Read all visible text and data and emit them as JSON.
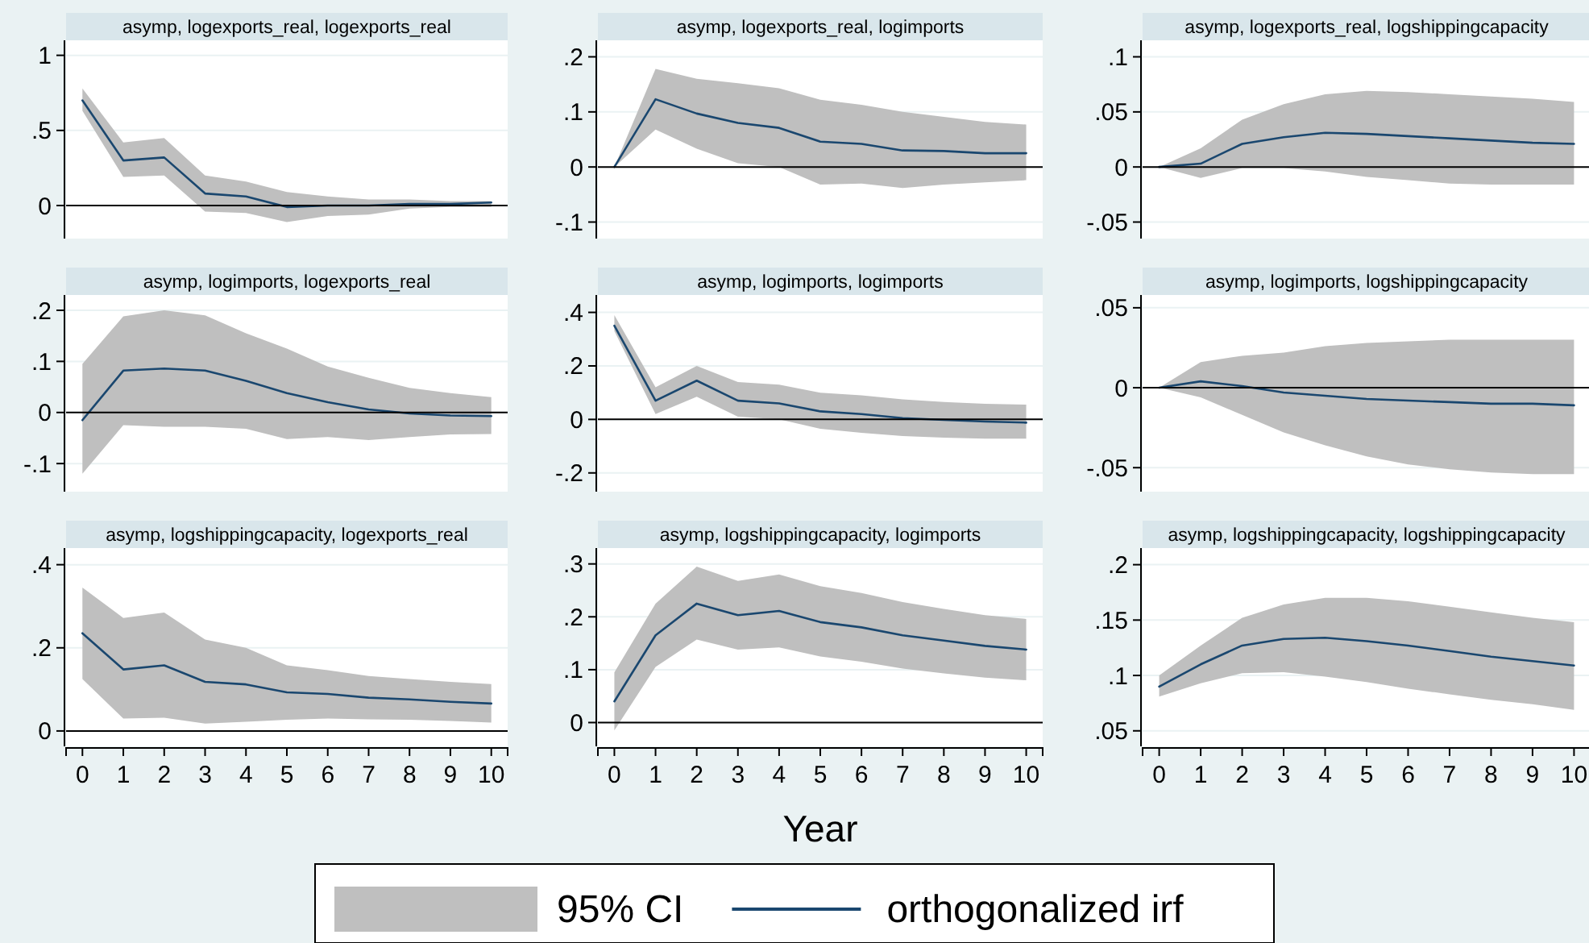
{
  "chart_data": [
    {
      "type": "line",
      "title": "asymp, logexports_real, logexports_real",
      "x": [
        0,
        1,
        2,
        3,
        4,
        5,
        6,
        7,
        8,
        9,
        10
      ],
      "xlim": [
        -0.4,
        10.4
      ],
      "xticks": [
        0,
        1,
        2,
        3,
        4,
        5,
        6,
        7,
        8,
        9,
        10
      ],
      "ylim": [
        -0.22,
        1.1
      ],
      "yticks": [
        {
          "value": 0,
          "label": "0"
        },
        {
          "value": 0.5,
          "label": ".5"
        },
        1
      ],
      "grid": "y",
      "tick_labels": "y",
      "ref_lines": [
        {
          "axis": "y",
          "value": 0
        }
      ],
      "series": [
        {
          "color": "#1a476f",
          "values": [
            0.7,
            0.3,
            0.32,
            0.08,
            0.06,
            -0.01,
            0,
            0,
            0.01,
            0.01,
            0.02
          ],
          "lower": [
            0.63,
            0.19,
            0.2,
            -0.04,
            -0.05,
            -0.11,
            -0.07,
            -0.06,
            -0.02,
            -0.01,
            -0.01
          ],
          "upper": [
            0.78,
            0.42,
            0.45,
            0.2,
            0.16,
            0.09,
            0.06,
            0.04,
            0.04,
            0.03,
            0.03
          ]
        }
      ]
    },
    {
      "type": "line",
      "title": "asymp, logexports_real, logimports",
      "x": [
        0,
        1,
        2,
        3,
        4,
        5,
        6,
        7,
        8,
        9,
        10
      ],
      "xlim": [
        -0.4,
        10.4
      ],
      "xticks": [
        0,
        1,
        2,
        3,
        4,
        5,
        6,
        7,
        8,
        9,
        10
      ],
      "ylim": [
        -0.13,
        0.23
      ],
      "yticks": [
        {
          "value": -0.1,
          "label": "-.1"
        },
        {
          "value": 0,
          "label": "0"
        },
        {
          "value": 0.1,
          "label": ".1"
        },
        {
          "value": 0.2,
          "label": ".2"
        }
      ],
      "grid": "y",
      "tick_labels": "y",
      "ref_lines": [
        {
          "axis": "y",
          "value": 0
        }
      ],
      "series": [
        {
          "color": "#1a476f",
          "values": [
            0,
            0.123,
            0.097,
            0.08,
            0.071,
            0.046,
            0.042,
            0.03,
            0.029,
            0.025,
            0.025
          ],
          "lower": [
            0,
            0.068,
            0.033,
            0.007,
            0,
            -0.032,
            -0.03,
            -0.038,
            -0.032,
            -0.028,
            -0.024
          ],
          "upper": [
            0,
            0.178,
            0.16,
            0.152,
            0.143,
            0.122,
            0.113,
            0.1,
            0.091,
            0.082,
            0.077
          ]
        }
      ]
    },
    {
      "type": "line",
      "title": "asymp, logexports_real, logshippingcapacity",
      "x": [
        0,
        1,
        2,
        3,
        4,
        5,
        6,
        7,
        8,
        9,
        10
      ],
      "xlim": [
        -0.4,
        10.4
      ],
      "xticks": [
        0,
        1,
        2,
        3,
        4,
        5,
        6,
        7,
        8,
        9,
        10
      ],
      "ylim": [
        -0.065,
        0.115
      ],
      "yticks": [
        {
          "value": -0.05,
          "label": "-.05"
        },
        {
          "value": 0,
          "label": "0"
        },
        {
          "value": 0.05,
          "label": ".05"
        },
        {
          "value": 0.1,
          "label": ".1"
        }
      ],
      "grid": "y",
      "tick_labels": "y",
      "ref_lines": [
        {
          "axis": "y",
          "value": 0
        }
      ],
      "series": [
        {
          "color": "#1a476f",
          "values": [
            0,
            0.003,
            0.021,
            0.027,
            0.031,
            0.03,
            0.028,
            0.026,
            0.024,
            0.022,
            0.021
          ],
          "lower": [
            0,
            -0.01,
            -0.001,
            -0.001,
            -0.004,
            -0.009,
            -0.012,
            -0.015,
            -0.016,
            -0.016,
            -0.016
          ],
          "upper": [
            0,
            0.017,
            0.043,
            0.057,
            0.066,
            0.069,
            0.068,
            0.066,
            0.064,
            0.062,
            0.059
          ]
        }
      ]
    },
    {
      "type": "line",
      "title": "asymp, logimports, logexports_real",
      "x": [
        0,
        1,
        2,
        3,
        4,
        5,
        6,
        7,
        8,
        9,
        10
      ],
      "xlim": [
        -0.4,
        10.4
      ],
      "xticks": [
        0,
        1,
        2,
        3,
        4,
        5,
        6,
        7,
        8,
        9,
        10
      ],
      "ylim": [
        -0.155,
        0.23
      ],
      "yticks": [
        {
          "value": -0.1,
          "label": "-.1"
        },
        {
          "value": 0,
          "label": "0"
        },
        {
          "value": 0.1,
          "label": ".1"
        },
        {
          "value": 0.2,
          "label": ".2"
        }
      ],
      "grid": "y",
      "tick_labels": "y",
      "ref_lines": [
        {
          "axis": "y",
          "value": 0
        }
      ],
      "series": [
        {
          "color": "#1a476f",
          "values": [
            -0.015,
            0.082,
            0.086,
            0.082,
            0.062,
            0.038,
            0.02,
            0.006,
            -0.002,
            -0.006,
            -0.007
          ],
          "lower": [
            -0.12,
            -0.025,
            -0.028,
            -0.028,
            -0.032,
            -0.052,
            -0.048,
            -0.054,
            -0.048,
            -0.043,
            -0.042
          ],
          "upper": [
            0.095,
            0.188,
            0.2,
            0.19,
            0.155,
            0.125,
            0.09,
            0.068,
            0.048,
            0.038,
            0.03
          ]
        }
      ]
    },
    {
      "type": "line",
      "title": "asymp, logimports, logimports",
      "x": [
        0,
        1,
        2,
        3,
        4,
        5,
        6,
        7,
        8,
        9,
        10
      ],
      "xlim": [
        -0.4,
        10.4
      ],
      "xticks": [
        0,
        1,
        2,
        3,
        4,
        5,
        6,
        7,
        8,
        9,
        10
      ],
      "ylim": [
        -0.27,
        0.465
      ],
      "yticks": [
        {
          "value": -0.2,
          "label": "-.2"
        },
        {
          "value": 0,
          "label": "0"
        },
        {
          "value": 0.2,
          "label": ".2"
        },
        {
          "value": 0.4,
          "label": ".4"
        }
      ],
      "grid": "y",
      "tick_labels": "y",
      "ref_lines": [
        {
          "axis": "y",
          "value": 0
        }
      ],
      "series": [
        {
          "color": "#1a476f",
          "values": [
            0.35,
            0.07,
            0.145,
            0.07,
            0.06,
            0.03,
            0.02,
            0.005,
            -0.002,
            -0.008,
            -0.012
          ],
          "lower": [
            0.33,
            0.02,
            0.085,
            0.01,
            0,
            -0.035,
            -0.05,
            -0.062,
            -0.068,
            -0.072,
            -0.072
          ],
          "upper": [
            0.39,
            0.12,
            0.2,
            0.14,
            0.13,
            0.1,
            0.09,
            0.075,
            0.065,
            0.058,
            0.055
          ]
        }
      ]
    },
    {
      "type": "line",
      "title": "asymp, logimports, logshippingcapacity",
      "x": [
        0,
        1,
        2,
        3,
        4,
        5,
        6,
        7,
        8,
        9,
        10
      ],
      "xlim": [
        -0.4,
        10.4
      ],
      "xticks": [
        0,
        1,
        2,
        3,
        4,
        5,
        6,
        7,
        8,
        9,
        10
      ],
      "ylim": [
        -0.065,
        0.058
      ],
      "yticks": [
        {
          "value": -0.05,
          "label": "-.05"
        },
        {
          "value": 0,
          "label": "0"
        },
        {
          "value": 0.05,
          "label": ".05"
        }
      ],
      "grid": "y",
      "tick_labels": "y",
      "ref_lines": [
        {
          "axis": "y",
          "value": 0
        }
      ],
      "series": [
        {
          "color": "#1a476f",
          "values": [
            0,
            0.004,
            0.001,
            -0.003,
            -0.005,
            -0.007,
            -0.008,
            -0.009,
            -0.01,
            -0.01,
            -0.011
          ],
          "lower": [
            0,
            -0.006,
            -0.017,
            -0.028,
            -0.036,
            -0.043,
            -0.048,
            -0.051,
            -0.053,
            -0.054,
            -0.054
          ],
          "upper": [
            0,
            0.016,
            0.02,
            0.022,
            0.026,
            0.028,
            0.029,
            0.03,
            0.03,
            0.03,
            0.03
          ]
        }
      ]
    },
    {
      "type": "line",
      "title": "asymp, logshippingcapacity, logexports_real",
      "x": [
        0,
        1,
        2,
        3,
        4,
        5,
        6,
        7,
        8,
        9,
        10
      ],
      "xlim": [
        -0.4,
        10.4
      ],
      "xticks": [
        0,
        1,
        2,
        3,
        4,
        5,
        6,
        7,
        8,
        9,
        10
      ],
      "ylim": [
        -0.037,
        0.44
      ],
      "yticks": [
        {
          "value": 0,
          "label": "0"
        },
        {
          "value": 0.2,
          "label": ".2"
        },
        {
          "value": 0.4,
          "label": ".4"
        }
      ],
      "grid": "y",
      "ref_lines": [
        {
          "axis": "y",
          "value": 0
        }
      ],
      "series": [
        {
          "color": "#1a476f",
          "values": [
            0.235,
            0.148,
            0.158,
            0.118,
            0.112,
            0.093,
            0.089,
            0.08,
            0.076,
            0.07,
            0.066
          ],
          "lower": [
            0.125,
            0.03,
            0.032,
            0.018,
            0.022,
            0.027,
            0.03,
            0.028,
            0.027,
            0.024,
            0.02
          ],
          "upper": [
            0.345,
            0.272,
            0.285,
            0.22,
            0.2,
            0.158,
            0.146,
            0.132,
            0.125,
            0.118,
            0.113
          ]
        }
      ]
    },
    {
      "type": "line",
      "title": "asymp, logshippingcapacity, logimports",
      "xlabel": "Year",
      "legend": "bottom",
      "annotations": [
        "95% CI"
      ],
      "x": [
        0,
        1,
        2,
        3,
        4,
        5,
        6,
        7,
        8,
        9,
        10
      ],
      "xlim": [
        -0.4,
        10.4
      ],
      "xticks": [
        0,
        1,
        2,
        3,
        4,
        5,
        6,
        7,
        8,
        9,
        10
      ],
      "ylim": [
        -0.045,
        0.33
      ],
      "yticks": [
        {
          "value": 0,
          "label": "0"
        },
        {
          "value": 0.1,
          "label": ".1"
        },
        {
          "value": 0.2,
          "label": ".2"
        },
        {
          "value": 0.3,
          "label": ".3"
        }
      ],
      "grid": "y",
      "ref_lines": [
        {
          "axis": "y",
          "value": 0
        }
      ],
      "series": [
        {
          "name": "orthogonalized irf",
          "color": "#1a476f",
          "values": [
            0.04,
            0.165,
            0.225,
            0.203,
            0.211,
            0.19,
            0.18,
            0.165,
            0.155,
            0.145,
            0.138
          ],
          "lower": [
            -0.015,
            0.105,
            0.157,
            0.138,
            0.142,
            0.125,
            0.115,
            0.102,
            0.093,
            0.085,
            0.08
          ],
          "upper": [
            0.095,
            0.225,
            0.295,
            0.268,
            0.28,
            0.258,
            0.245,
            0.228,
            0.215,
            0.203,
            0.196
          ]
        }
      ]
    },
    {
      "type": "line",
      "title": "asymp, logshippingcapacity, logshippingcapacity",
      "x": [
        0,
        1,
        2,
        3,
        4,
        5,
        6,
        7,
        8,
        9,
        10
      ],
      "xlim": [
        -0.4,
        10.4
      ],
      "xticks": [
        0,
        1,
        2,
        3,
        4,
        5,
        6,
        7,
        8,
        9,
        10
      ],
      "ylim": [
        0.036,
        0.215
      ],
      "yticks": [
        {
          "value": 0.05,
          "label": ".05"
        },
        {
          "value": 0.1,
          "label": ".1"
        },
        {
          "value": 0.15,
          "label": ".15"
        },
        {
          "value": 0.2,
          "label": ".2"
        }
      ],
      "grid": "y",
      "series": [
        {
          "color": "#1a476f",
          "values": [
            0.09,
            0.11,
            0.127,
            0.133,
            0.134,
            0.131,
            0.127,
            0.122,
            0.117,
            0.113,
            0.109
          ],
          "lower": [
            0.081,
            0.093,
            0.102,
            0.103,
            0.099,
            0.094,
            0.088,
            0.083,
            0.078,
            0.074,
            0.069
          ],
          "upper": [
            0.1,
            0.127,
            0.152,
            0.164,
            0.17,
            0.17,
            0.167,
            0.162,
            0.157,
            0.152,
            0.148
          ]
        }
      ]
    }
  ]
}
